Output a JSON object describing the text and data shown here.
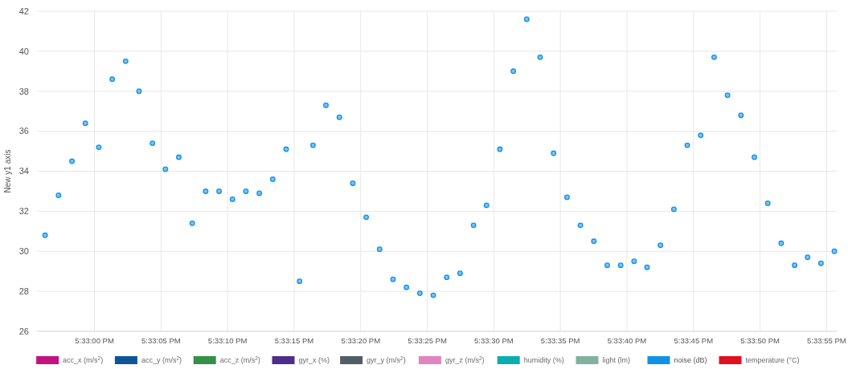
{
  "chart_data": {
    "type": "scatter",
    "ylabel": "New y1 axis",
    "x": [
      17.54897,
      17.54925,
      17.54953,
      17.54981,
      17.55009,
      17.55037,
      17.55065,
      17.55093,
      17.55121,
      17.55148,
      17.55176,
      17.55204,
      17.55232,
      17.5526,
      17.55288,
      17.55316,
      17.55344,
      17.55372,
      17.554,
      17.55428,
      17.55456,
      17.55483,
      17.55511,
      17.55539,
      17.55567,
      17.55595,
      17.55623,
      17.55651,
      17.55679,
      17.55707,
      17.55735,
      17.55763,
      17.55791,
      17.55818,
      17.55846,
      17.55874,
      17.55902,
      17.5593,
      17.55958,
      17.55986,
      17.56014,
      17.56042,
      17.5607,
      17.56098,
      17.56126,
      17.56153,
      17.56181,
      17.56209,
      17.56237,
      17.56265,
      17.56293,
      17.56321,
      17.56349,
      17.56377,
      17.56405,
      17.56433,
      17.56461,
      17.56488,
      17.56516,
      17.56544
    ],
    "series": [
      {
        "name": "acc_x (m/s$^{2}$)",
        "color": "#c4127f",
        "values": [
          null,
          null,
          null,
          null,
          null,
          null,
          null,
          null,
          null,
          null,
          null,
          null,
          null,
          null,
          null,
          null,
          null,
          null,
          null,
          null,
          null,
          null,
          null,
          null,
          null,
          null,
          null,
          null,
          null,
          null,
          null,
          null,
          null,
          null,
          null,
          null,
          null,
          null,
          null,
          null,
          null,
          null,
          null,
          null,
          null,
          null,
          null,
          null,
          null,
          null,
          null,
          null,
          null,
          null,
          null,
          null,
          null,
          null,
          null,
          null
        ]
      },
      {
        "name": "acc_y (m/s$^{2}$)",
        "color": "#0e5596",
        "values": [
          null,
          null,
          null,
          null,
          null,
          null,
          null,
          null,
          null,
          null,
          null,
          null,
          null,
          null,
          null,
          null,
          null,
          null,
          null,
          null,
          null,
          null,
          null,
          null,
          null,
          null,
          null,
          null,
          null,
          null,
          null,
          null,
          null,
          null,
          null,
          null,
          null,
          null,
          null,
          null,
          null,
          null,
          null,
          null,
          null,
          null,
          null,
          null,
          null,
          null,
          null,
          null,
          null,
          null,
          null,
          null,
          null,
          null,
          null,
          null
        ]
      },
      {
        "name": "acc_z (m/s$^{2}$)",
        "color": "#35904a",
        "values": [
          null,
          null,
          null,
          null,
          null,
          null,
          null,
          null,
          null,
          null,
          null,
          null,
          null,
          null,
          null,
          null,
          null,
          null,
          null,
          null,
          null,
          null,
          null,
          null,
          null,
          null,
          null,
          null,
          null,
          null,
          null,
          null,
          null,
          null,
          null,
          null,
          null,
          null,
          null,
          null,
          null,
          null,
          null,
          null,
          null,
          null,
          null,
          null,
          null,
          null,
          null,
          null,
          null,
          null,
          null,
          null,
          null,
          null,
          null,
          null
        ]
      },
      {
        "name": "gyr_x (%)",
        "color": "#4f2d8a",
        "values": [
          null,
          null,
          null,
          null,
          null,
          null,
          null,
          null,
          null,
          null,
          null,
          null,
          null,
          null,
          null,
          null,
          null,
          null,
          null,
          null,
          null,
          null,
          null,
          null,
          null,
          null,
          null,
          null,
          null,
          null,
          null,
          null,
          null,
          null,
          null,
          null,
          null,
          null,
          null,
          null,
          null,
          null,
          null,
          null,
          null,
          null,
          null,
          null,
          null,
          null,
          null,
          null,
          null,
          null,
          null,
          null,
          null,
          null,
          null,
          null
        ]
      },
      {
        "name": "gyr_y (m/s$^{2}$)",
        "color": "#535d66",
        "values": [
          null,
          null,
          null,
          null,
          null,
          null,
          null,
          null,
          null,
          null,
          null,
          null,
          null,
          null,
          null,
          null,
          null,
          null,
          null,
          null,
          null,
          null,
          null,
          null,
          null,
          null,
          null,
          null,
          null,
          null,
          null,
          null,
          null,
          null,
          null,
          null,
          null,
          null,
          null,
          null,
          null,
          null,
          null,
          null,
          null,
          null,
          null,
          null,
          null,
          null,
          null,
          null,
          null,
          null,
          null,
          null,
          null,
          null,
          null,
          null
        ]
      },
      {
        "name": "gyr_z (m/s$^{2}$)",
        "color": "#e184c0",
        "values": [
          null,
          null,
          null,
          null,
          null,
          null,
          null,
          null,
          null,
          null,
          null,
          null,
          null,
          null,
          null,
          null,
          null,
          null,
          null,
          null,
          null,
          null,
          null,
          null,
          null,
          null,
          null,
          null,
          null,
          null,
          null,
          null,
          null,
          null,
          null,
          null,
          null,
          null,
          null,
          null,
          null,
          null,
          null,
          null,
          null,
          null,
          null,
          null,
          null,
          null,
          null,
          null,
          null,
          null,
          null,
          null,
          null,
          null,
          null,
          null
        ]
      },
      {
        "name": "humidity (%)",
        "color": "#0aaeb0",
        "values": [
          null,
          null,
          null,
          null,
          null,
          null,
          null,
          null,
          null,
          null,
          null,
          null,
          null,
          null,
          null,
          null,
          null,
          null,
          null,
          null,
          null,
          null,
          null,
          null,
          null,
          null,
          null,
          null,
          null,
          null,
          null,
          null,
          null,
          null,
          null,
          null,
          null,
          null,
          null,
          null,
          null,
          null,
          null,
          null,
          null,
          null,
          null,
          null,
          null,
          null,
          null,
          null,
          null,
          null,
          null,
          null,
          null,
          null,
          null,
          null
        ]
      },
      {
        "name": "light (lm)",
        "color": "#7fb3a0",
        "values": [
          null,
          null,
          null,
          null,
          null,
          null,
          null,
          null,
          null,
          null,
          null,
          null,
          null,
          null,
          null,
          null,
          null,
          null,
          null,
          null,
          null,
          null,
          null,
          null,
          null,
          null,
          null,
          null,
          null,
          null,
          null,
          null,
          null,
          null,
          null,
          null,
          null,
          null,
          null,
          null,
          null,
          null,
          null,
          null,
          null,
          null,
          null,
          null,
          null,
          null,
          null,
          null,
          null,
          null,
          null,
          null,
          null,
          null,
          null,
          null
        ]
      },
      {
        "name": "noise (dB)",
        "color": "#1192e8",
        "values": [
          30.8,
          32.8,
          34.5,
          36.4,
          35.2,
          38.6,
          39.5,
          38.0,
          35.4,
          34.1,
          34.7,
          31.4,
          33.0,
          33.0,
          32.6,
          33.0,
          32.9,
          33.6,
          35.1,
          28.5,
          35.3,
          37.3,
          36.7,
          33.4,
          31.7,
          30.1,
          28.6,
          28.2,
          27.9,
          27.8,
          28.7,
          28.9,
          31.3,
          32.3,
          35.1,
          39.0,
          41.6,
          39.7,
          34.9,
          32.7,
          31.3,
          30.5,
          29.3,
          29.3,
          29.5,
          29.2,
          30.3,
          32.1,
          35.3,
          35.8,
          39.7,
          37.8,
          36.8,
          34.7,
          32.4,
          30.4,
          29.3,
          29.7,
          29.4,
          30.0
        ]
      },
      {
        "name": "temperature (°C)",
        "color": "#e0101f",
        "values": [
          null,
          null,
          null,
          null,
          null,
          null,
          null,
          null,
          null,
          null,
          null,
          null,
          null,
          null,
          null,
          null,
          null,
          null,
          null,
          null,
          null,
          null,
          null,
          null,
          null,
          null,
          null,
          null,
          null,
          null,
          null,
          null,
          null,
          null,
          null,
          null,
          null,
          null,
          null,
          null,
          null,
          null,
          null,
          null,
          null,
          null,
          null,
          null,
          null,
          null,
          null,
          null,
          null,
          null,
          null,
          null,
          null,
          null,
          null,
          null
        ]
      }
    ],
    "xlim": [
      17.5488,
      17.565489
    ],
    "ylim": [
      26,
      42
    ],
    "xticks": [
      {
        "value": 17.55,
        "label": "5:33:00 PM"
      },
      {
        "value": 17.551389,
        "label": "5:33:05 PM"
      },
      {
        "value": 17.552778,
        "label": "5:33:10 PM"
      },
      {
        "value": 17.554167,
        "label": "5:33:15 PM"
      },
      {
        "value": 17.555556,
        "label": "5:33:20 PM"
      },
      {
        "value": 17.556944,
        "label": "5:33:25 PM"
      },
      {
        "value": 17.558333,
        "label": "5:33:30 PM"
      },
      {
        "value": 17.559722,
        "label": "5:33:35 PM"
      },
      {
        "value": 17.561111,
        "label": "5:33:40 PM"
      },
      {
        "value": 17.5625,
        "label": "5:33:45 PM"
      },
      {
        "value": 17.563889,
        "label": "5:33:50 PM"
      },
      {
        "value": 17.565278,
        "label": "5:33:55 PM"
      }
    ],
    "yticks": [
      26,
      28,
      30,
      32,
      34,
      36,
      38,
      40,
      42
    ],
    "grid": true,
    "legend": "bottom",
    "marker": "circle"
  }
}
